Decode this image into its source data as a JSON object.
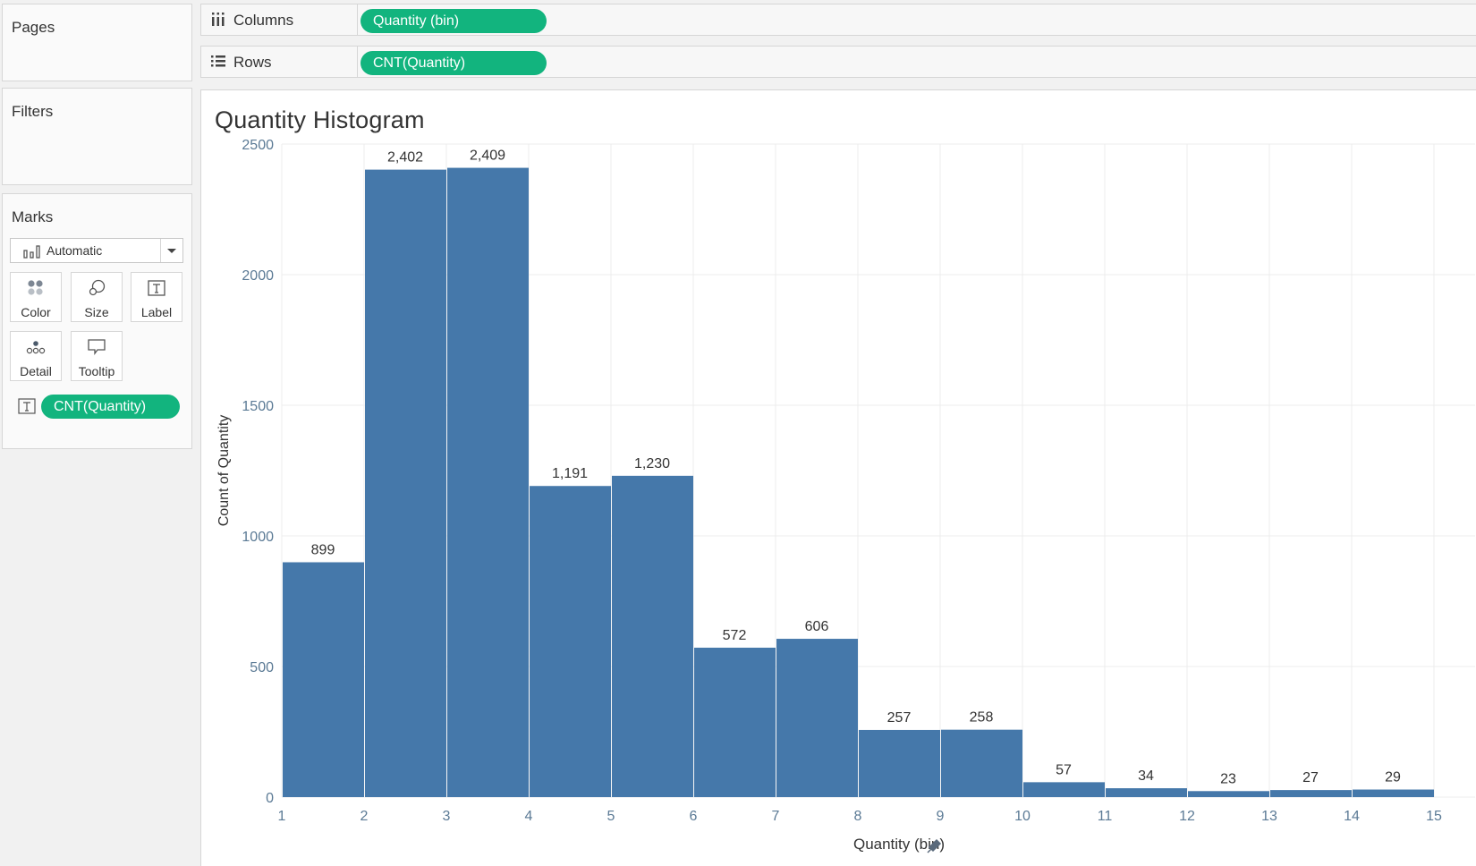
{
  "cards": {
    "pages": {
      "title": "Pages"
    },
    "filters": {
      "title": "Filters"
    },
    "marks": {
      "title": "Marks",
      "mark_type": "Automatic",
      "buttons": [
        {
          "label": "Color",
          "icon": "color-dots-icon"
        },
        {
          "label": "Size",
          "icon": "size-icon"
        },
        {
          "label": "Label",
          "icon": "label-t-icon"
        },
        {
          "label": "Detail",
          "icon": "detail-dots-icon"
        },
        {
          "label": "Tooltip",
          "icon": "tooltip-bubble-icon"
        }
      ],
      "field_pill": "CNT(Quantity)",
      "field_pill_icon": "label-t-icon"
    }
  },
  "shelves": {
    "columns": {
      "label": "Columns",
      "icon": "columns-icon",
      "pill": "Quantity (bin)"
    },
    "rows": {
      "label": "Rows",
      "icon": "rows-icon",
      "pill": "CNT(Quantity)"
    }
  },
  "colors": {
    "pill_green": "#12b47e",
    "bar_blue": "#4578aa",
    "axis_text": "#5b7a95"
  },
  "chart_data": {
    "type": "bar",
    "title": "Quantity Histogram",
    "xlabel": "Quantity (bin)",
    "xlabel_icon": "pin-icon",
    "ylabel": "Count of Quantity",
    "x_ticks": [
      "1",
      "2",
      "3",
      "4",
      "5",
      "6",
      "7",
      "8",
      "9",
      "10",
      "11",
      "12",
      "13",
      "14",
      "15"
    ],
    "y_ticks": [
      "0",
      "500",
      "1000",
      "1500",
      "2000",
      "2500"
    ],
    "ylim": [
      0,
      2500
    ],
    "bins": [
      1,
      2,
      3,
      4,
      5,
      6,
      7,
      8,
      9,
      10,
      11,
      12,
      13,
      14
    ],
    "values": [
      899,
      2402,
      2409,
      1191,
      1230,
      572,
      606,
      257,
      258,
      57,
      34,
      23,
      27,
      29
    ],
    "value_labels": [
      "899",
      "2,402",
      "2,409",
      "1,191",
      "1,230",
      "572",
      "606",
      "257",
      "258",
      "57",
      "34",
      "23",
      "27",
      "29"
    ],
    "grid": true,
    "legend": "none"
  }
}
